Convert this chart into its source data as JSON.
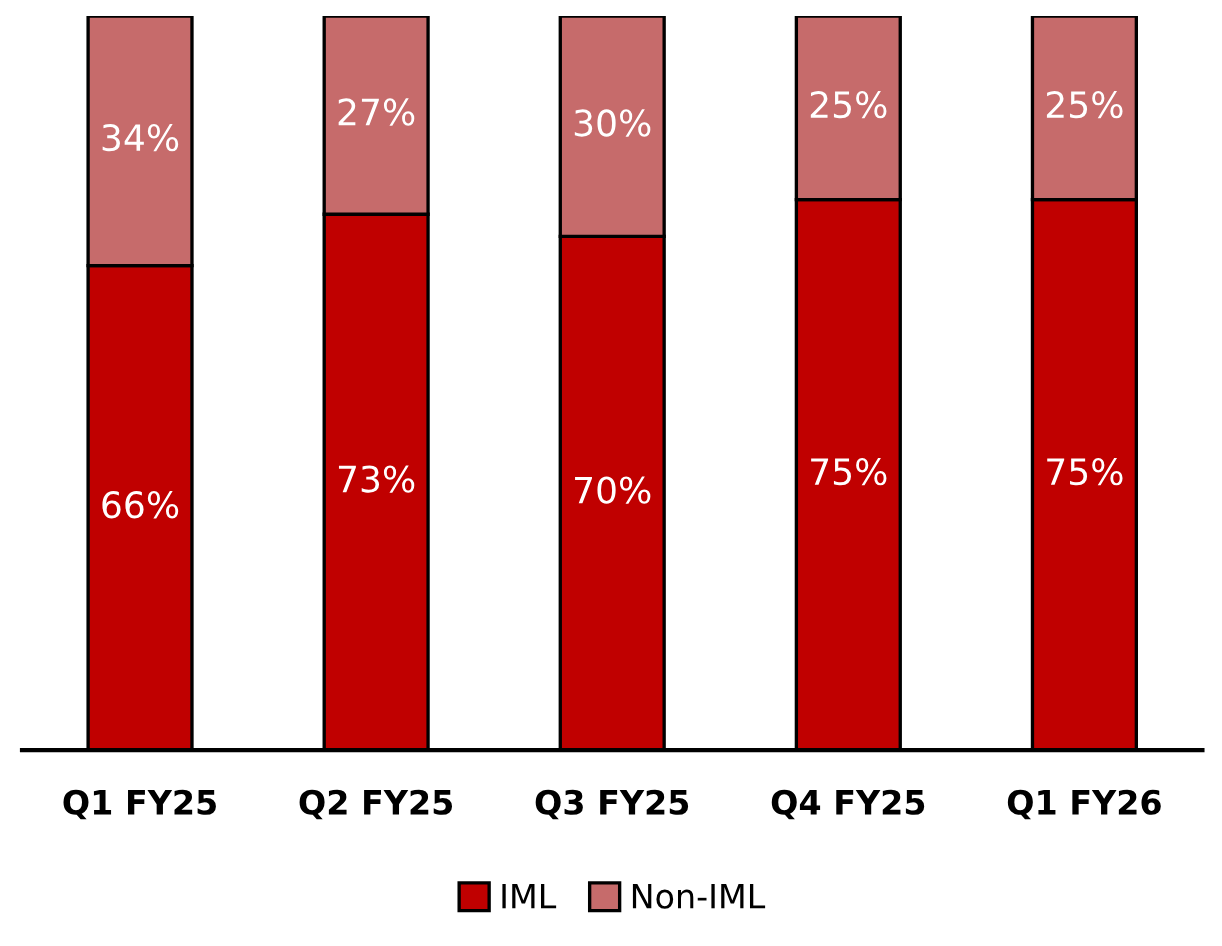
{
  "chart_data": {
    "type": "bar",
    "stacked": true,
    "categories": [
      "Q1 FY25",
      "Q2 FY25",
      "Q3 FY25",
      "Q4 FY25",
      "Q1 FY26"
    ],
    "ylim": [
      0,
      100
    ],
    "tick_labels": "x",
    "grid": false,
    "legend": "bottom",
    "series": [
      {
        "name": "IML",
        "color": "#c00000",
        "values": [
          66,
          73,
          70,
          75,
          75
        ],
        "value_labels": [
          "66%",
          "73%",
          "70%",
          "75%",
          "75%"
        ]
      },
      {
        "name": "Non-IML",
        "color": "#c66b6b",
        "values": [
          34,
          27,
          30,
          25,
          25
        ],
        "value_labels": [
          "34%",
          "27%",
          "30%",
          "25%",
          "25%"
        ]
      }
    ]
  }
}
